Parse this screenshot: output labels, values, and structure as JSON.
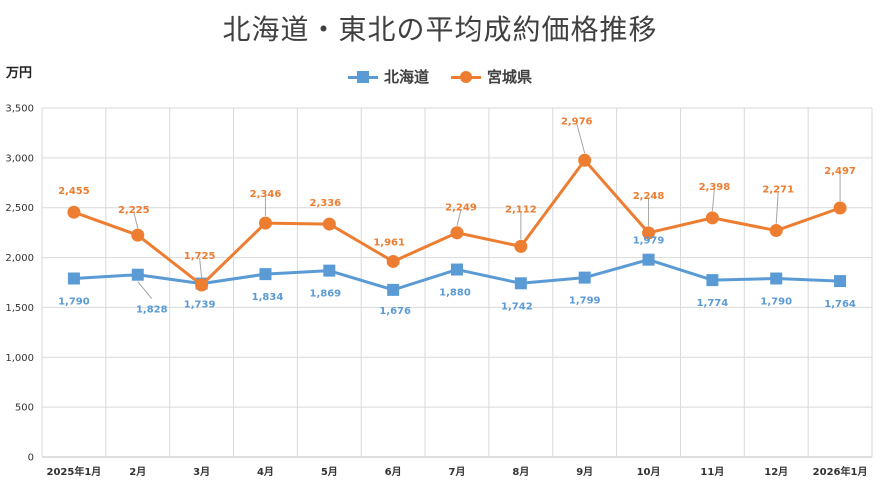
{
  "title": "北海道・東北の平均成約価格推移",
  "y_unit": "万円",
  "colors": {
    "hokkaido": "#5b9bd5",
    "miyagi": "#ed7d31",
    "grid": "#d9d9d9",
    "axis_text": "#333333"
  },
  "chart_data": {
    "type": "line",
    "title": "北海道・東北の平均成約価格推移",
    "ylabel": "万円",
    "ylim": [
      0,
      3500
    ],
    "yticks": [
      0,
      500,
      1000,
      1500,
      2000,
      2500,
      3000,
      3500
    ],
    "ytick_labels": [
      "0",
      "500",
      "1,000",
      "1,500",
      "2,000",
      "2,500",
      "3,000",
      "3,500"
    ],
    "grid": true,
    "legend_position": "top-center",
    "categories": [
      "2025年1月",
      "2月",
      "3月",
      "4月",
      "5月",
      "6月",
      "7月",
      "8月",
      "9月",
      "10月",
      "11月",
      "12月",
      "2026年1月"
    ],
    "series": [
      {
        "name": "北海道",
        "marker": "square",
        "color": "#5b9bd5",
        "values": [
          1790,
          1828,
          1739,
          1834,
          1869,
          1676,
          1880,
          1742,
          1799,
          1979,
          1774,
          1790,
          1764
        ],
        "labels": [
          "1,790",
          "1,828",
          "1,739",
          "1,834",
          "1,869",
          "1,676",
          "1,880",
          "1,742",
          "1,799",
          "1,979",
          "1,774",
          "1,790",
          "1,764"
        ]
      },
      {
        "name": "宮城県",
        "marker": "circle",
        "color": "#ed7d31",
        "values": [
          2455,
          2225,
          1725,
          2346,
          2336,
          1961,
          2249,
          2112,
          2976,
          2248,
          2398,
          2271,
          2497
        ],
        "labels": [
          "2,455",
          "2,225",
          "1,725",
          "2,346",
          "2,336",
          "1,961",
          "2,249",
          "2,112",
          "2,976",
          "2,248",
          "2,398",
          "2,271",
          "2,497"
        ]
      }
    ]
  }
}
